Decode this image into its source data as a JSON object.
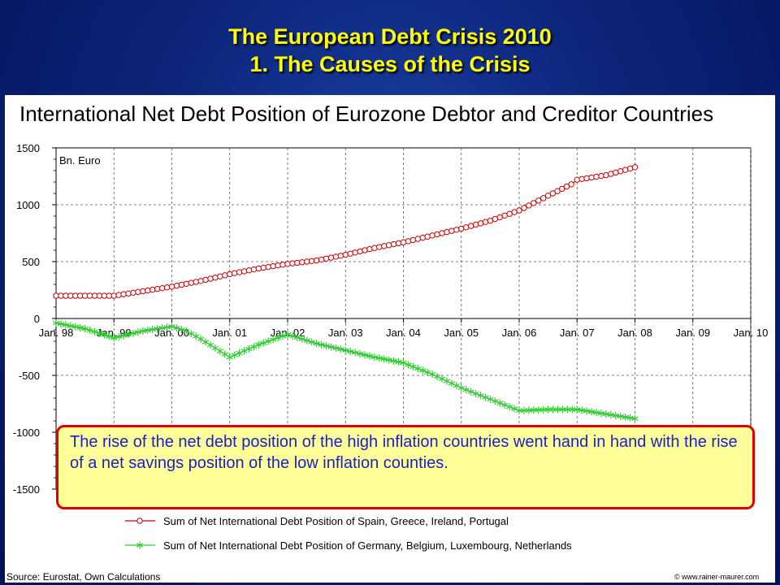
{
  "slide": {
    "title_line1": "The European Debt Crisis 2010",
    "title_line2": "1. The Causes of the Crisis"
  },
  "callout_text": "The rise of the net debt position of the high inflation countries went hand in hand with the rise of a net savings position of the low inflation counties.",
  "source": "Source: Eurostat, Own Calculations",
  "credit": "© www.rainer-maurer.com",
  "colors": {
    "debtor": "#cc0000",
    "creditor": "#33cc33",
    "callout_border": "#e00000",
    "callout_bg": "#ffff99",
    "title": "#ffff00"
  },
  "chart_data": {
    "type": "line",
    "title": "International Net Debt Position of Eurozone Debtor and Creditor Countries",
    "unit_label": "Bn. Euro",
    "x_ticks": [
      "Jan. 98",
      "Jan. 99",
      "Jan. 00",
      "Jan. 01",
      "Jan. 02",
      "Jan. 03",
      "Jan. 04",
      "Jan. 05",
      "Jan. 06",
      "Jan. 07",
      "Jan. 08",
      "Jan. 09",
      "Jan. 10"
    ],
    "y_ticks": [
      "1500",
      "1000",
      "500",
      "0",
      "-500",
      "-1000",
      "-1500"
    ],
    "ylim": [
      -1500,
      1500
    ],
    "xlim": [
      1998.0,
      2010.0
    ],
    "grid": true,
    "legend_position": "bottom",
    "series": [
      {
        "name": "Sum of Net International Debt Position of Spain, Greece, Ireland, Portugal",
        "marker": "circle",
        "color": "#cc0000",
        "x": [
          1998.0,
          1998.5,
          1999.0,
          1999.5,
          2000.0,
          2000.5,
          2001.0,
          2001.5,
          2002.0,
          2002.5,
          2003.0,
          2003.5,
          2004.0,
          2004.5,
          2005.0,
          2005.5,
          2006.0,
          2006.5,
          2006.9,
          2007.0,
          2007.5,
          2008.0
        ],
        "y": [
          200,
          200,
          200,
          240,
          280,
          330,
          390,
          440,
          480,
          510,
          560,
          620,
          670,
          730,
          790,
          860,
          950,
          1080,
          1180,
          1220,
          1260,
          1330
        ]
      },
      {
        "name": "Sum of Net International Debt Position of Germany, Belgium, Luxembourg, Netherlands",
        "marker": "star",
        "color": "#33cc33",
        "x": [
          1998.0,
          1998.5,
          1999.0,
          1999.5,
          2000.0,
          2000.25,
          2000.5,
          2001.0,
          2001.5,
          2002.0,
          2002.5,
          2003.0,
          2003.5,
          2004.0,
          2004.5,
          2005.0,
          2005.5,
          2006.0,
          2006.5,
          2007.0,
          2007.5,
          2008.0
        ],
        "y": [
          -40,
          -90,
          -170,
          -110,
          -70,
          -110,
          -180,
          -340,
          -230,
          -140,
          -220,
          -280,
          -340,
          -390,
          -490,
          -610,
          -710,
          -810,
          -800,
          -800,
          -840,
          -880
        ]
      }
    ]
  }
}
